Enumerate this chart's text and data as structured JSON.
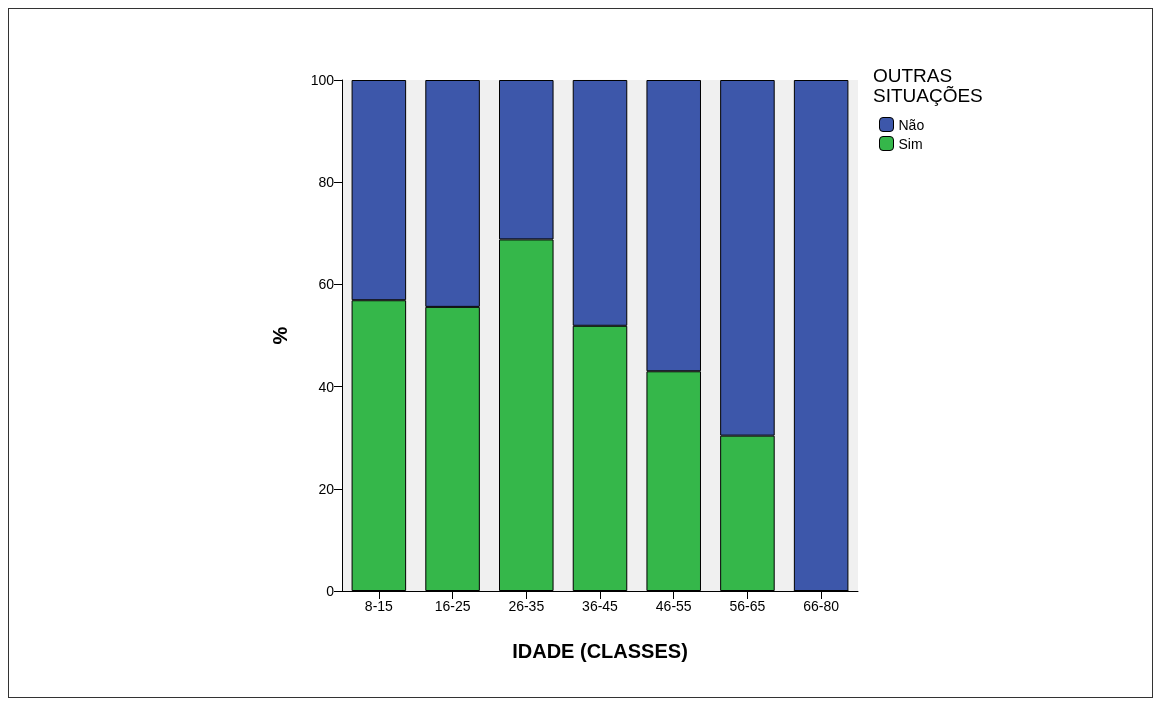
{
  "chart_data": {
    "type": "bar",
    "stacked": true,
    "xlabel": "IDADE (CLASSES)",
    "ylabel": "%",
    "legend_title": "OUTRAS SITUAÇÕES",
    "legend": "top right",
    "categories": [
      "8-15",
      "16-25",
      "26-35",
      "36-45",
      "46-55",
      "56-65",
      "66-80"
    ],
    "series": [
      {
        "name": "Sim",
        "color": "#35b74a",
        "values": [
          56.9,
          55.6,
          68.8,
          51.9,
          43.0,
          30.4,
          0
        ]
      },
      {
        "name": "Não",
        "color": "#3d57aa",
        "values": [
          43.1,
          44.4,
          31.2,
          48.1,
          57.0,
          69.6,
          100
        ]
      }
    ],
    "ylim": [
      0,
      100
    ],
    "yticks": [
      0,
      20,
      40,
      60,
      80,
      100
    ],
    "grid": false
  }
}
